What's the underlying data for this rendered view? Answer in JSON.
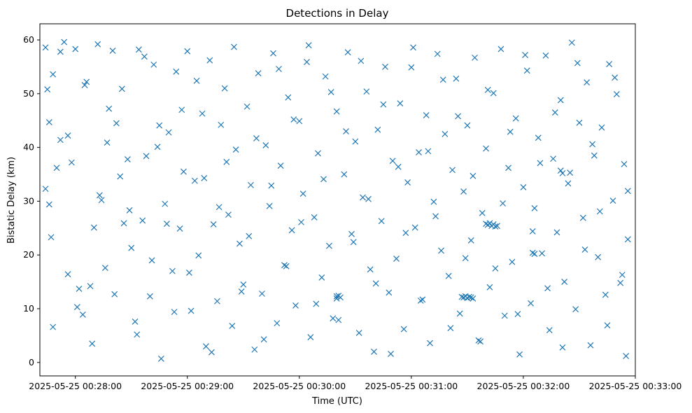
{
  "chart_data": {
    "type": "scatter",
    "title": "Detections in Delay",
    "xlabel": "Time (UTC)",
    "ylabel": "Bistatic Delay (km)",
    "xlim": [
      "2025-05-25 00:27:41",
      "2025-05-25 00:33:00"
    ],
    "ylim": [
      -2.5,
      63
    ],
    "x_ticks": [
      "2025-05-25 00:28:00",
      "2025-05-25 00:29:00",
      "2025-05-25 00:30:00",
      "2025-05-25 00:31:00",
      "2025-05-25 00:32:00",
      "2025-05-25 00:33:00"
    ],
    "y_ticks": [
      0,
      10,
      20,
      30,
      40,
      50,
      60
    ],
    "marker": "x",
    "color": "#1f77b4",
    "grid": false,
    "series": [
      {
        "x": [
          "2025-05-25 00:27:44",
          "2025-05-25 00:27:45",
          "2025-05-25 00:27:46",
          "2025-05-25 00:27:47",
          "2025-05-25 00:27:48",
          "2025-05-25 00:27:50",
          "2025-05-25 00:27:52",
          "2025-05-25 00:27:54",
          "2025-05-25 00:27:56",
          "2025-05-25 00:27:58",
          "2025-05-25 00:28:00",
          "2025-05-25 00:28:02",
          "2025-05-25 00:28:04",
          "2025-05-25 00:28:06",
          "2025-05-25 00:28:08",
          "2025-05-25 00:28:10",
          "2025-05-25 00:28:12",
          "2025-05-25 00:28:14",
          "2025-05-25 00:28:16",
          "2025-05-25 00:28:18",
          "2025-05-25 00:28:20",
          "2025-05-25 00:28:22",
          "2025-05-25 00:28:24",
          "2025-05-25 00:28:26",
          "2025-05-25 00:28:28",
          "2025-05-25 00:28:30",
          "2025-05-25 00:28:32",
          "2025-05-25 00:28:34",
          "2025-05-25 00:28:36",
          "2025-05-25 00:28:38",
          "2025-05-25 00:28:40",
          "2025-05-25 00:28:42",
          "2025-05-25 00:28:44",
          "2025-05-25 00:28:46",
          "2025-05-25 00:28:48",
          "2025-05-25 00:28:50",
          "2025-05-25 00:28:52",
          "2025-05-25 00:28:54",
          "2025-05-25 00:28:56",
          "2025-05-25 00:28:58",
          "2025-05-25 00:29:00",
          "2025-05-25 00:29:02",
          "2025-05-25 00:29:04",
          "2025-05-25 00:29:06",
          "2025-05-25 00:29:08",
          "2025-05-25 00:29:10",
          "2025-05-25 00:29:12",
          "2025-05-25 00:29:14",
          "2025-05-25 00:29:16",
          "2025-05-25 00:29:18",
          "2025-05-25 00:29:20",
          "2025-05-25 00:29:22",
          "2025-05-25 00:29:24",
          "2025-05-25 00:29:26",
          "2025-05-25 00:29:28",
          "2025-05-25 00:29:30",
          "2025-05-25 00:29:32",
          "2025-05-25 00:29:34",
          "2025-05-25 00:29:36",
          "2025-05-25 00:29:38",
          "2025-05-25 00:29:40",
          "2025-05-25 00:29:42",
          "2025-05-25 00:29:44",
          "2025-05-25 00:29:46",
          "2025-05-25 00:29:48",
          "2025-05-25 00:29:50",
          "2025-05-25 00:29:52",
          "2025-05-25 00:29:54",
          "2025-05-25 00:29:56",
          "2025-05-25 00:29:58",
          "2025-05-25 00:30:00",
          "2025-05-25 00:30:02",
          "2025-05-25 00:30:04",
          "2025-05-25 00:30:06",
          "2025-05-25 00:30:08",
          "2025-05-25 00:30:10",
          "2025-05-25 00:30:12",
          "2025-05-25 00:30:14",
          "2025-05-25 00:30:16",
          "2025-05-25 00:30:18",
          "2025-05-25 00:30:20",
          "2025-05-25 00:30:22",
          "2025-05-25 00:30:24",
          "2025-05-25 00:30:26",
          "2025-05-25 00:30:28",
          "2025-05-25 00:30:30",
          "2025-05-25 00:30:32",
          "2025-05-25 00:30:34",
          "2025-05-25 00:30:36",
          "2025-05-25 00:30:38",
          "2025-05-25 00:30:40",
          "2025-05-25 00:30:42",
          "2025-05-25 00:30:44",
          "2025-05-25 00:30:46",
          "2025-05-25 00:30:48",
          "2025-05-25 00:30:50",
          "2025-05-25 00:30:52",
          "2025-05-25 00:30:54",
          "2025-05-25 00:30:56",
          "2025-05-25 00:30:58",
          "2025-05-25 00:31:00",
          "2025-05-25 00:31:02",
          "2025-05-25 00:31:04",
          "2025-05-25 00:31:06",
          "2025-05-25 00:31:08",
          "2025-05-25 00:31:10",
          "2025-05-25 00:31:12",
          "2025-05-25 00:31:14",
          "2025-05-25 00:31:16",
          "2025-05-25 00:31:18",
          "2025-05-25 00:31:20",
          "2025-05-25 00:31:22",
          "2025-05-25 00:31:24",
          "2025-05-25 00:31:26",
          "2025-05-25 00:31:28",
          "2025-05-25 00:31:30",
          "2025-05-25 00:31:32",
          "2025-05-25 00:31:34",
          "2025-05-25 00:31:36",
          "2025-05-25 00:31:38",
          "2025-05-25 00:31:40",
          "2025-05-25 00:31:42",
          "2025-05-25 00:31:44",
          "2025-05-25 00:31:46",
          "2025-05-25 00:31:48",
          "2025-05-25 00:31:50",
          "2025-05-25 00:31:52",
          "2025-05-25 00:31:54",
          "2025-05-25 00:31:56",
          "2025-05-25 00:31:58",
          "2025-05-25 00:32:00",
          "2025-05-25 00:32:02",
          "2025-05-25 00:32:04",
          "2025-05-25 00:32:06",
          "2025-05-25 00:32:08",
          "2025-05-25 00:32:10",
          "2025-05-25 00:32:12",
          "2025-05-25 00:32:14",
          "2025-05-25 00:32:16",
          "2025-05-25 00:32:18",
          "2025-05-25 00:32:20",
          "2025-05-25 00:32:22",
          "2025-05-25 00:32:24",
          "2025-05-25 00:32:26",
          "2025-05-25 00:32:28",
          "2025-05-25 00:32:30",
          "2025-05-25 00:32:32",
          "2025-05-25 00:32:34",
          "2025-05-25 00:32:36",
          "2025-05-25 00:32:38",
          "2025-05-25 00:32:40",
          "2025-05-25 00:32:42",
          "2025-05-25 00:32:44",
          "2025-05-25 00:32:46",
          "2025-05-25 00:32:48",
          "2025-05-25 00:32:50",
          "2025-05-25 00:32:52",
          "2025-05-25 00:32:54",
          "2025-05-25 00:32:55",
          "2025-05-25 00:32:56",
          "2025-05-25 00:27:44",
          "2025-05-25 00:27:46",
          "2025-05-25 00:27:48",
          "2025-05-25 00:27:52",
          "2025-05-25 00:27:56",
          "2025-05-25 00:28:01",
          "2025-05-25 00:28:05",
          "2025-05-25 00:28:09",
          "2025-05-25 00:28:13",
          "2025-05-25 00:28:17",
          "2025-05-25 00:28:21",
          "2025-05-25 00:28:25",
          "2025-05-25 00:28:29",
          "2025-05-25 00:28:33",
          "2025-05-25 00:28:37",
          "2025-05-25 00:28:41",
          "2025-05-25 00:28:45",
          "2025-05-25 00:28:49",
          "2025-05-25 00:28:53",
          "2025-05-25 00:28:57",
          "2025-05-25 00:29:01",
          "2025-05-25 00:29:05",
          "2025-05-25 00:29:09",
          "2025-05-25 00:29:13",
          "2025-05-25 00:29:17",
          "2025-05-25 00:29:21",
          "2025-05-25 00:29:25",
          "2025-05-25 00:29:29",
          "2025-05-25 00:29:33",
          "2025-05-25 00:29:37",
          "2025-05-25 00:29:41",
          "2025-05-25 00:29:45",
          "2025-05-25 00:29:49",
          "2025-05-25 00:29:53",
          "2025-05-25 00:29:57",
          "2025-05-25 00:30:01",
          "2025-05-25 00:30:05",
          "2025-05-25 00:30:09",
          "2025-05-25 00:30:13",
          "2025-05-25 00:30:17",
          "2025-05-25 00:30:21",
          "2025-05-25 00:30:25",
          "2025-05-25 00:30:29",
          "2025-05-25 00:30:33",
          "2025-05-25 00:30:37",
          "2025-05-25 00:30:41",
          "2025-05-25 00:30:45",
          "2025-05-25 00:30:49",
          "2025-05-25 00:30:53",
          "2025-05-25 00:30:57",
          "2025-05-25 00:31:01",
          "2025-05-25 00:31:05",
          "2025-05-25 00:31:09",
          "2025-05-25 00:31:13",
          "2025-05-25 00:31:17",
          "2025-05-25 00:31:21",
          "2025-05-25 00:31:25",
          "2025-05-25 00:31:29",
          "2025-05-25 00:31:33",
          "2025-05-25 00:31:37",
          "2025-05-25 00:31:41",
          "2025-05-25 00:31:45",
          "2025-05-25 00:31:49",
          "2025-05-25 00:31:53",
          "2025-05-25 00:31:57",
          "2025-05-25 00:32:01",
          "2025-05-25 00:32:05",
          "2025-05-25 00:32:09",
          "2025-05-25 00:32:13",
          "2025-05-25 00:32:17",
          "2025-05-25 00:32:21",
          "2025-05-25 00:32:25",
          "2025-05-25 00:32:29",
          "2025-05-25 00:32:33",
          "2025-05-25 00:32:37",
          "2025-05-25 00:32:41",
          "2025-05-25 00:32:45",
          "2025-05-25 00:32:49",
          "2025-05-25 00:32:53",
          "2025-05-25 00:32:56",
          "2025-05-25 00:30:20",
          "2025-05-25 00:30:20",
          "2025-05-25 00:30:21",
          "2025-05-25 00:31:27",
          "2025-05-25 00:31:28",
          "2025-05-25 00:31:29",
          "2025-05-25 00:31:30",
          "2025-05-25 00:31:31",
          "2025-05-25 00:31:32",
          "2025-05-25 00:31:33",
          "2025-05-25 00:31:40",
          "2025-05-25 00:31:41",
          "2025-05-25 00:31:42",
          "2025-05-25 00:31:43",
          "2025-05-25 00:31:44",
          "2025-05-25 00:31:45",
          "2025-05-25 00:32:05",
          "2025-05-25 00:32:06",
          "2025-05-25 00:32:20",
          "2025-05-25 00:32:21"
        ],
        "y": [
          58.6,
          50.8,
          29.4,
          23.3,
          53.6,
          36.2,
          41.4,
          59.6,
          16.4,
          37.2,
          58.3,
          13.7,
          8.9,
          52.2,
          14.2,
          25.1,
          59.2,
          30.2,
          17.6,
          47.2,
          58.0,
          44.5,
          34.6,
          25.9,
          37.8,
          21.3,
          7.6,
          58.2,
          26.4,
          38.4,
          12.3,
          55.4,
          40.1,
          0.7,
          29.5,
          42.8,
          17.0,
          54.1,
          24.9,
          35.5,
          57.9,
          9.6,
          33.8,
          19.9,
          46.3,
          3.0,
          56.2,
          25.7,
          11.4,
          44.2,
          51.0,
          27.5,
          6.8,
          39.6,
          22.1,
          14.5,
          47.6,
          33.0,
          2.4,
          53.8,
          12.8,
          40.4,
          29.1,
          57.5,
          7.3,
          36.6,
          18.1,
          49.3,
          24.6,
          10.6,
          44.9,
          31.4,
          55.9,
          4.7,
          27.0,
          38.9,
          15.8,
          53.2,
          21.7,
          8.2,
          46.7,
          12.1,
          35.0,
          57.7,
          23.9,
          41.1,
          5.5,
          30.7,
          50.4,
          17.3,
          2.0,
          43.3,
          26.3,
          55.0,
          13.0,
          37.5,
          19.3,
          48.2,
          6.2,
          33.5,
          54.9,
          25.1,
          39.1,
          11.7,
          46.0,
          3.6,
          29.9,
          57.4,
          20.8,
          42.5,
          16.1,
          35.8,
          52.8,
          9.1,
          31.8,
          44.1,
          22.7,
          56.7,
          4.1,
          27.8,
          39.8,
          14.0,
          50.1,
          25.4,
          58.3,
          8.7,
          36.2,
          18.7,
          45.4,
          1.5,
          32.6,
          54.3,
          11.0,
          28.7,
          41.8,
          20.3,
          57.1,
          6.0,
          37.9,
          24.2,
          48.8,
          15.0,
          33.3,
          59.5,
          9.9,
          44.6,
          26.9,
          52.1,
          3.2,
          38.5,
          19.6,
          43.7,
          12.6,
          55.5,
          30.1,
          49.9,
          14.8,
          36.9,
          1.2,
          22.9,
          32.3,
          44.7,
          6.6,
          57.8,
          42.2,
          10.3,
          51.6,
          3.5,
          31.1,
          40.9,
          12.7,
          50.9,
          28.3,
          5.2,
          56.9,
          19.0,
          44.1,
          25.8,
          9.4,
          47.0,
          16.7,
          52.4,
          34.3,
          1.9,
          28.9,
          37.3,
          58.7,
          13.2,
          23.5,
          41.7,
          4.3,
          32.9,
          54.6,
          17.9,
          45.2,
          26.1,
          59.0,
          10.9,
          34.1,
          50.3,
          7.9,
          43.0,
          22.4,
          56.1,
          30.4,
          14.7,
          48.0,
          1.6,
          36.4,
          24.1,
          58.6,
          11.5,
          39.3,
          27.2,
          52.6,
          6.4,
          45.8,
          19.4,
          34.7,
          3.9,
          50.7,
          17.5,
          29.6,
          42.9,
          9.0,
          57.2,
          24.4,
          37.1,
          13.8,
          46.5,
          2.8,
          35.3,
          55.7,
          21.0,
          40.6,
          28.1,
          6.9,
          53.0,
          16.3,
          31.9,
          12.3,
          11.9,
          12.4,
          12.2,
          12.1,
          12.3,
          12.0,
          12.2,
          12.1,
          11.9,
          25.8,
          25.6,
          25.9,
          25.4,
          25.7,
          25.3,
          20.4,
          20.2,
          35.7,
          35.2
        ]
      }
    ]
  }
}
